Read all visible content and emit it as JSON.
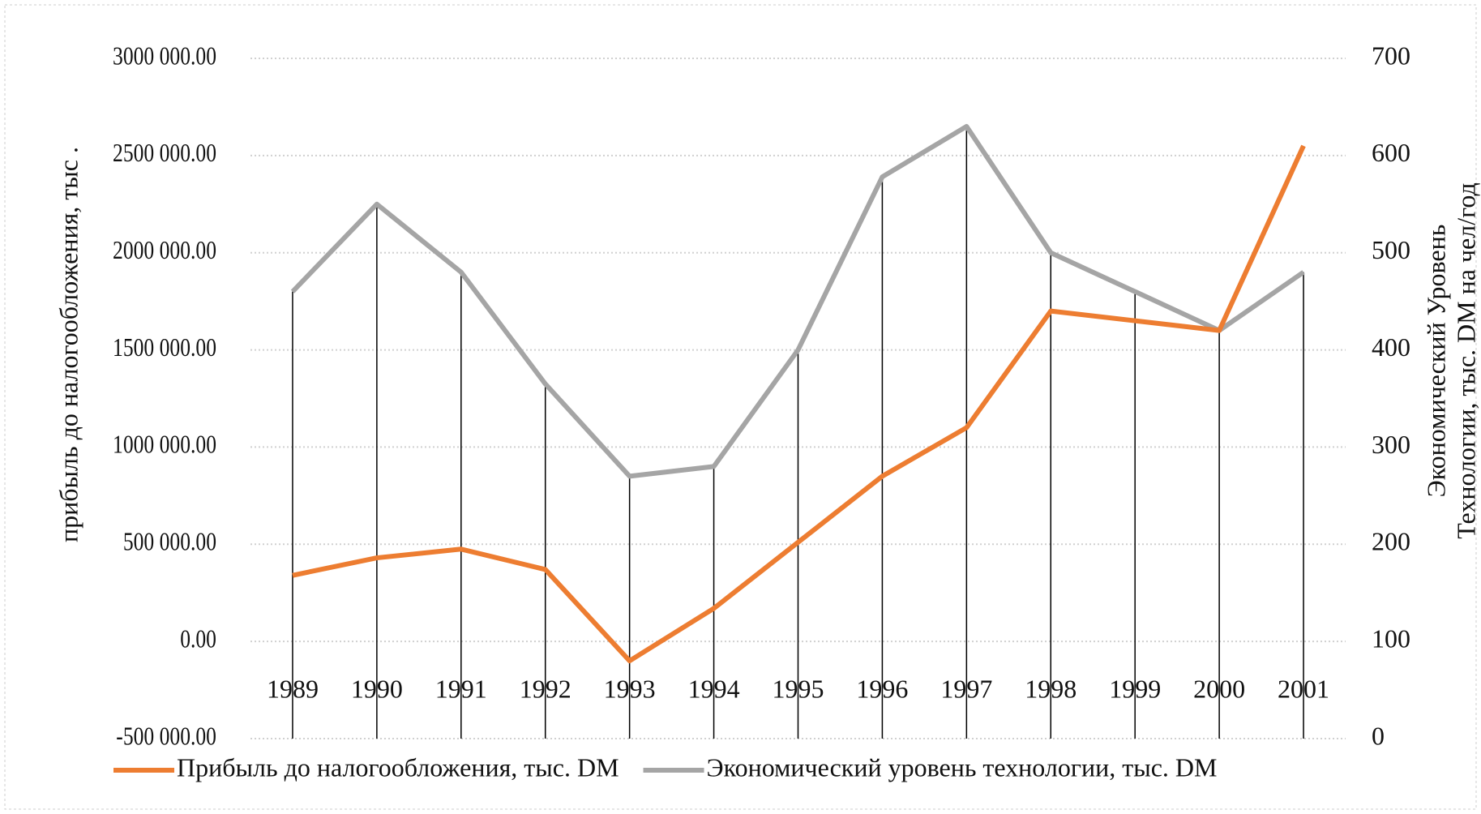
{
  "chart_data": {
    "type": "line",
    "y_label": "прибыль до налогообложения, тыс .",
    "y2_label": [
      "Экономический Уровень",
      "Технологии, тыс. DM на чел/год"
    ],
    "categories": [
      "1989",
      "1990",
      "1991",
      "1992",
      "1993",
      "1994",
      "1995",
      "1996",
      "1997",
      "1998",
      "1999",
      "2000",
      "2001"
    ],
    "series": [
      {
        "name": "Прибыль до налогообложения, тыс. DM",
        "color": "#ed7d31",
        "values": [
          340000,
          430000,
          475000,
          370000,
          -100000,
          170000,
          510000,
          850000,
          1100000,
          1700000,
          1650000,
          1600000,
          2550000
        ]
      },
      {
        "name": "Экономический уровень технологии, тыс. DM",
        "color": "#a5a5a5",
        "axis": "y2",
        "drop_lines": true,
        "values": [
          460,
          550,
          480,
          365,
          270,
          280,
          400,
          578,
          630,
          500,
          460,
          420,
          480
        ]
      }
    ],
    "ylim": [
      -500000,
      3000000
    ],
    "yticks": [
      {
        "value": -500000,
        "label": "-500 000.00"
      },
      {
        "value": 0,
        "label": "0.00"
      },
      {
        "value": 500000,
        "label": "500 000.00"
      },
      {
        "value": 1000000,
        "label": "1000 000.00"
      },
      {
        "value": 1500000,
        "label": "1500 000.00"
      },
      {
        "value": 2000000,
        "label": "2000 000.00"
      },
      {
        "value": 2500000,
        "label": "2500 000.00"
      },
      {
        "value": 3000000,
        "label": "3000 000.00"
      }
    ],
    "y2lim": [
      0,
      700
    ],
    "y2ticks": [
      0,
      100,
      200,
      300,
      400,
      500,
      600,
      700
    ],
    "grid": true,
    "legend": "bottom"
  }
}
